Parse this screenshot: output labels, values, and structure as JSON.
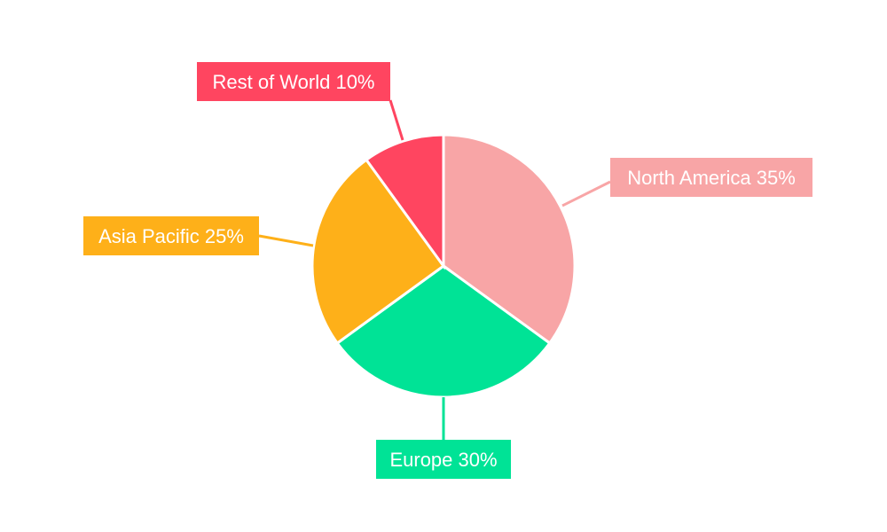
{
  "chart_data": {
    "type": "pie",
    "categories": [
      "North America",
      "Europe",
      "Asia Pacific",
      "Rest of World"
    ],
    "values": [
      35,
      30,
      25,
      10
    ],
    "labels": [
      "North America 35%",
      "Europe 30%",
      "Asia Pacific 25%",
      "Rest of World 10%"
    ],
    "colors": [
      "#F8A5A6",
      "#00E396",
      "#FEB019",
      "#FF4560"
    ],
    "start_angle": "top",
    "direction": "clockwise",
    "legend": "none"
  }
}
